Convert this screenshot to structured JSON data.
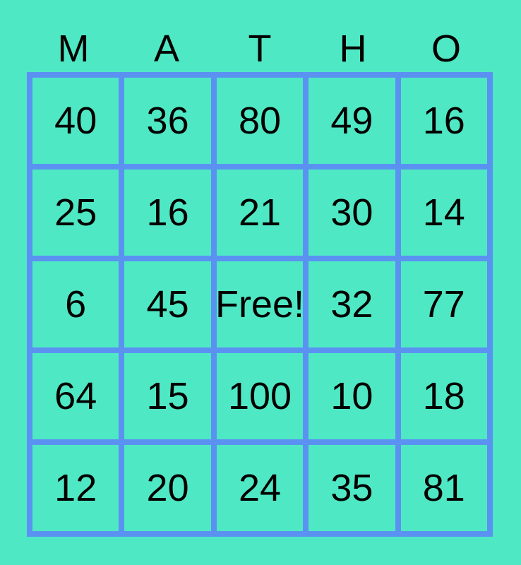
{
  "card": {
    "title_letters": [
      "M",
      "A",
      "T",
      "H",
      "O"
    ],
    "free_label": "Free!",
    "rows": [
      [
        "40",
        "36",
        "80",
        "49",
        "16"
      ],
      [
        "25",
        "16",
        "21",
        "30",
        "14"
      ],
      [
        "6",
        "45",
        "Free!",
        "32",
        "77"
      ],
      [
        "64",
        "15",
        "100",
        "10",
        "18"
      ],
      [
        "12",
        "20",
        "24",
        "35",
        "81"
      ]
    ]
  },
  "colors": {
    "background": "#4FE8C4",
    "grid_line": "#5B92F2",
    "text": "#000000"
  }
}
